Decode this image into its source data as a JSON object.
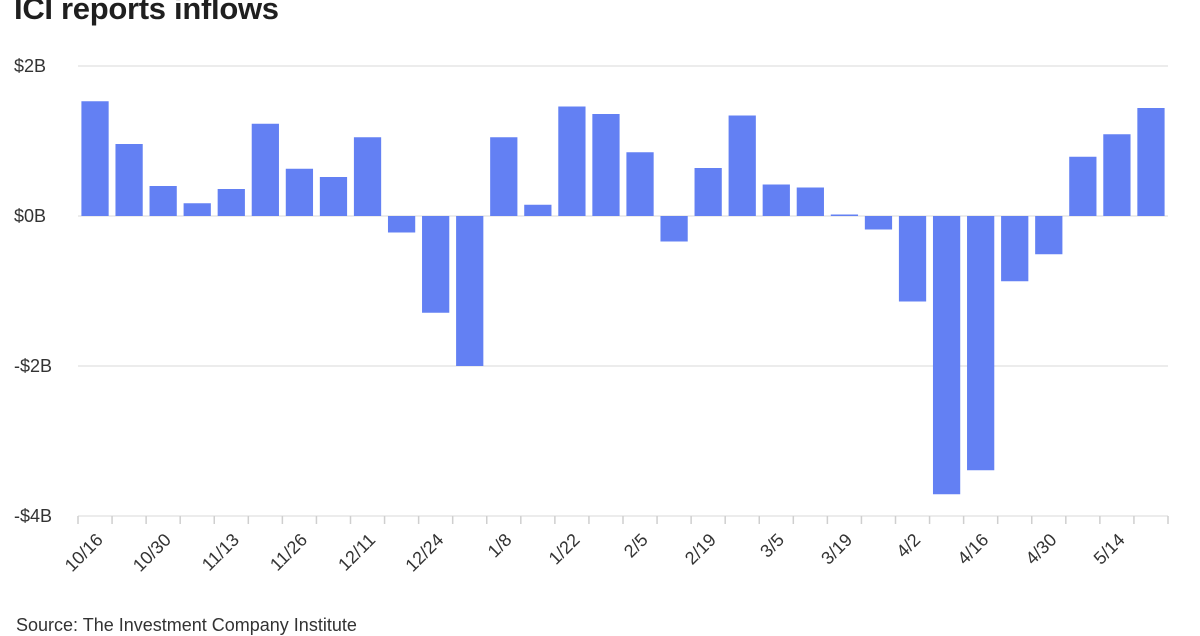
{
  "title": "ICI reports inflows",
  "source": "Source: The Investment Company Institute",
  "colors": {
    "bar": "#6380f3",
    "grid": "#e6e6e6",
    "axis": "#cfcfcf"
  },
  "chart_data": {
    "type": "bar",
    "title": "ICI reports inflows",
    "xlabel": "",
    "ylabel": "",
    "ylim": [
      -4,
      2
    ],
    "yticks": [
      2,
      0,
      -2,
      -4
    ],
    "ytick_labels": [
      "$2B",
      "$0B",
      "-$2B",
      "-$4B"
    ],
    "grid": "horizontal",
    "legend": "none",
    "values": [
      1.53,
      0.96,
      0.4,
      0.17,
      0.36,
      1.23,
      0.63,
      0.52,
      1.05,
      -0.22,
      -1.29,
      -2.0,
      1.05,
      0.15,
      1.46,
      1.36,
      0.85,
      -0.34,
      0.64,
      1.34,
      0.42,
      0.38,
      0.02,
      -0.18,
      -1.14,
      -3.71,
      -3.39,
      -0.87,
      -0.51,
      0.79,
      1.09,
      1.44
    ],
    "x_tick_labels": [
      {
        "bar_index": 0,
        "label": "10/16"
      },
      {
        "bar_index": 2,
        "label": "10/30"
      },
      {
        "bar_index": 4,
        "label": "11/13"
      },
      {
        "bar_index": 6,
        "label": "11/26"
      },
      {
        "bar_index": 8,
        "label": "12/11"
      },
      {
        "bar_index": 10,
        "label": "12/24"
      },
      {
        "bar_index": 12,
        "label": "1/8"
      },
      {
        "bar_index": 14,
        "label": "1/22"
      },
      {
        "bar_index": 16,
        "label": "2/5"
      },
      {
        "bar_index": 18,
        "label": "2/19"
      },
      {
        "bar_index": 20,
        "label": "3/5"
      },
      {
        "bar_index": 22,
        "label": "3/19"
      },
      {
        "bar_index": 24,
        "label": "4/2"
      },
      {
        "bar_index": 26,
        "label": "4/16"
      },
      {
        "bar_index": 28,
        "label": "4/30"
      },
      {
        "bar_index": 30,
        "label": "5/14"
      }
    ]
  }
}
